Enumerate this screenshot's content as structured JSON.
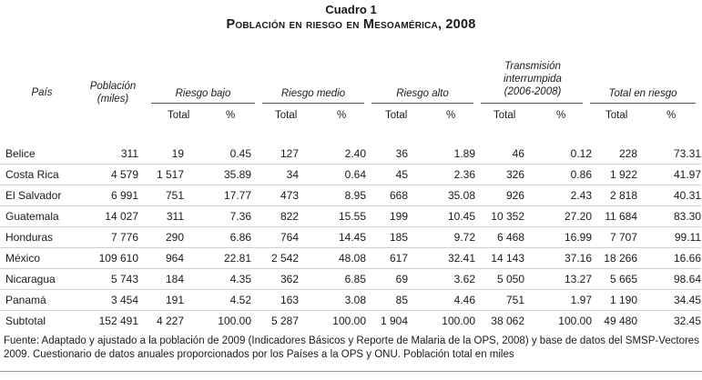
{
  "title": "Cuadro 1",
  "subtitle": "Población en riesgo en Mesoamérica, 2008",
  "headers": {
    "pais": "País",
    "poblacion": "Población (miles)",
    "groups": [
      "Riesgo bajo",
      "Riesgo medio",
      "Riesgo alto",
      "Transmisión interrumpida (2006-2008)",
      "Total en riesgo"
    ],
    "total_label": "Total",
    "pct_label": "%"
  },
  "rows": [
    {
      "pais": "Belice",
      "poblacion": "311",
      "bajo_total": "19",
      "bajo_pct": "0.45",
      "medio_total": "127",
      "medio_pct": "2.40",
      "alto_total": "36",
      "alto_pct": "1.89",
      "trans_total": "46",
      "trans_pct": "0.12",
      "riesgo_total": "228",
      "riesgo_pct": "73.31"
    },
    {
      "pais": "Costa Rica",
      "poblacion": "4 579",
      "bajo_total": "1 517",
      "bajo_pct": "35.89",
      "medio_total": "34",
      "medio_pct": "0.64",
      "alto_total": "45",
      "alto_pct": "2.36",
      "trans_total": "326",
      "trans_pct": "0.86",
      "riesgo_total": "1 922",
      "riesgo_pct": "41.97"
    },
    {
      "pais": "El Salvador",
      "poblacion": "6 991",
      "bajo_total": "751",
      "bajo_pct": "17.77",
      "medio_total": "473",
      "medio_pct": "8.95",
      "alto_total": "668",
      "alto_pct": "35.08",
      "trans_total": "926",
      "trans_pct": "2.43",
      "riesgo_total": "2 818",
      "riesgo_pct": "40.31"
    },
    {
      "pais": "Guatemala",
      "poblacion": "14 027",
      "bajo_total": "311",
      "bajo_pct": "7.36",
      "medio_total": "822",
      "medio_pct": "15.55",
      "alto_total": "199",
      "alto_pct": "10.45",
      "trans_total": "10 352",
      "trans_pct": "27.20",
      "riesgo_total": "11 684",
      "riesgo_pct": "83.30"
    },
    {
      "pais": "Honduras",
      "poblacion": "7 776",
      "bajo_total": "290",
      "bajo_pct": "6.86",
      "medio_total": "764",
      "medio_pct": "14.45",
      "alto_total": "185",
      "alto_pct": "9.72",
      "trans_total": "6 468",
      "trans_pct": "16.99",
      "riesgo_total": "7 707",
      "riesgo_pct": "99.11"
    },
    {
      "pais": "México",
      "poblacion": "109 610",
      "bajo_total": "964",
      "bajo_pct": "22.81",
      "medio_total": "2 542",
      "medio_pct": "48.08",
      "alto_total": "617",
      "alto_pct": "32.41",
      "trans_total": "14 143",
      "trans_pct": "37.16",
      "riesgo_total": "18 266",
      "riesgo_pct": "16.66"
    },
    {
      "pais": "Nicaragua",
      "poblacion": "5 743",
      "bajo_total": "184",
      "bajo_pct": "4.35",
      "medio_total": "362",
      "medio_pct": "6.85",
      "alto_total": "69",
      "alto_pct": "3.62",
      "trans_total": "5 050",
      "trans_pct": "13.27",
      "riesgo_total": "5 665",
      "riesgo_pct": "98.64"
    },
    {
      "pais": "Panamá",
      "poblacion": "3 454",
      "bajo_total": "191",
      "bajo_pct": "4.52",
      "medio_total": "163",
      "medio_pct": "3.08",
      "alto_total": "85",
      "alto_pct": "4.46",
      "trans_total": "751",
      "trans_pct": "1.97",
      "riesgo_total": "1 190",
      "riesgo_pct": "34.45"
    },
    {
      "pais": "Subtotal",
      "poblacion": "152 491",
      "bajo_total": "4 227",
      "bajo_pct": "100.00",
      "medio_total": "5 287",
      "medio_pct": "100.00",
      "alto_total": "1 904",
      "alto_pct": "100.00",
      "trans_total": "38 062",
      "trans_pct": "100.00",
      "riesgo_total": "49 480",
      "riesgo_pct": "32.45"
    }
  ],
  "source": "Fuente: Adaptado y ajustado a la población de 2009 (Indicadores Básicos y Reporte de Malaria de la OPS, 2008) y base de datos del SMSP-Vectores 2009. Cuestionario de datos anuales proporcionados por los Países a la OPS y ONU. Población total en miles"
}
